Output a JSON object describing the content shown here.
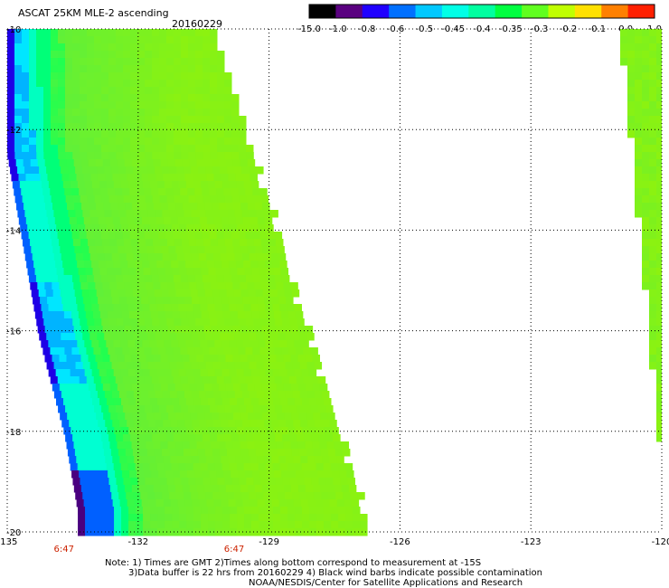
{
  "title": "ASCAT 25KM MLE-2 ascending",
  "date": "20160229",
  "colorbar": {
    "labels": [
      "-15.0",
      "-1.0",
      "-0.8",
      "-0.6",
      "-0.5",
      "-0.45",
      "-0.4",
      "-0.35",
      "-0.3",
      "-0.2",
      "-0.1",
      "0.0",
      "1.0"
    ],
    "colors": [
      "#000000",
      "#5a0080",
      "#2000ff",
      "#0070ff",
      "#00c8ff",
      "#00ffe6",
      "#00ffa0",
      "#00ff40",
      "#60ff20",
      "#c0ff00",
      "#ffe000",
      "#ff8000",
      "#ff2000"
    ]
  },
  "chart_data": {
    "type": "heatmap",
    "x_ticks": [
      "-135",
      "-132",
      "-129",
      "-126",
      "-123",
      "-120"
    ],
    "y_ticks": [
      "-10",
      "-12",
      "-14",
      "-16",
      "-18",
      "-20"
    ],
    "xlim": [
      -135,
      -120
    ],
    "ylim": [
      -20,
      -10
    ],
    "grid": true,
    "times": [
      {
        "x": -133.7,
        "label": "6:47"
      },
      {
        "x": -129.8,
        "label": "6:47"
      }
    ],
    "swaths": [
      {
        "name": "left swath",
        "left_edge_lon": -135.0,
        "right_edge_top_lon": -130.4,
        "right_edge_bottom_lon": -126.8,
        "rows": [
          {
            "lat": -10.0,
            "low_band_lon": [
              -135.0,
              -134.6
            ],
            "min_value": -0.8
          },
          {
            "lat": -12.0,
            "low_band_lon": [
              -135.0,
              -134.5
            ],
            "min_value": -0.8
          },
          {
            "lat": -14.0,
            "low_band_lon": [
              -134.6,
              -134.1
            ],
            "min_value": -0.6
          },
          {
            "lat": -16.0,
            "low_band_lon": [
              -134.2,
              -133.6
            ],
            "min_value": -0.8
          },
          {
            "lat": -18.0,
            "low_band_lon": [
              -133.6,
              -133.0
            ],
            "min_value": -0.6
          },
          {
            "lat": -19.5,
            "low_band_lon": [
              -133.3,
              -132.7
            ],
            "min_value": -1.0
          }
        ],
        "bulk_value": -0.3
      },
      {
        "name": "right swath",
        "left_edge_top_lon": -120.9,
        "left_edge_bottom_lon": -119.8,
        "bulk_value": -0.25
      }
    ]
  },
  "notes": [
    "Note: 1) Times are GMT 2)Times along bottom correspond to measurement at -15S",
    "3)Data buffer is 22 hrs from 20160229 4) Black wind barbs indicate possible contamination",
    "NOAA/NESDIS/Center for Satellite Applications and Research"
  ]
}
